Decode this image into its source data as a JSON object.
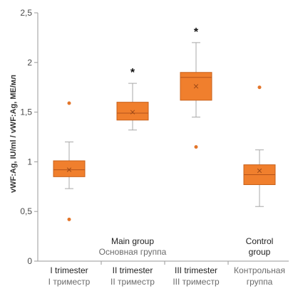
{
  "chart_data": {
    "type": "box",
    "ylabel": "vWF:Ag, IU/ml / vWF:Ag, МЕ/мл",
    "ylim": [
      0,
      2.5
    ],
    "yticks": [
      {
        "value": 0,
        "label": "0"
      },
      {
        "value": 0.5,
        "label": "0,5"
      },
      {
        "value": 1,
        "label": "1"
      },
      {
        "value": 1.5,
        "label": "1,5"
      },
      {
        "value": 2,
        "label": "2"
      },
      {
        "value": 2.5,
        "label": "2,5"
      }
    ],
    "categories": [
      {
        "en": "I trimester",
        "ru": "I триместр"
      },
      {
        "en": "II trimester",
        "ru": "II триместр"
      },
      {
        "en": "III trimester",
        "ru": "III триместр"
      },
      {
        "en": "",
        "ru": "Контрольная группа"
      }
    ],
    "group_labels": [
      {
        "en": "Main group",
        "ru": "Основная группа"
      },
      {
        "en": "Control group",
        "ru": ""
      }
    ],
    "boxes": [
      {
        "category": "I trimester",
        "whisker_low": 0.73,
        "q1": 0.85,
        "median": 0.92,
        "mean": 0.92,
        "q3": 1.01,
        "whisker_high": 1.2,
        "outliers": [
          0.42,
          1.59
        ],
        "significance": ""
      },
      {
        "category": "II trimester",
        "whisker_low": 1.32,
        "q1": 1.42,
        "median": 1.49,
        "mean": 1.5,
        "q3": 1.6,
        "whisker_high": 1.79,
        "outliers": [],
        "significance": "*"
      },
      {
        "category": "III trimester",
        "whisker_low": 1.45,
        "q1": 1.62,
        "median": 1.85,
        "mean": 1.76,
        "q3": 1.9,
        "whisker_high": 2.2,
        "outliers": [
          1.15
        ],
        "significance": "*"
      },
      {
        "category": "Контрольная группа",
        "whisker_low": 0.55,
        "q1": 0.77,
        "median": 0.87,
        "mean": 0.91,
        "q3": 0.97,
        "whisker_high": 1.12,
        "outliers": [
          1.75
        ],
        "significance": ""
      }
    ],
    "colors": {
      "box_fill": "#F07F2D",
      "box_stroke": "#C8611A",
      "whisker": "#A8A8A8",
      "median": "#B5531A",
      "mean_marker": "#9E4A18",
      "outlier": "#E3752A",
      "axis": "#9A9A9A",
      "tick_text": "#4A4A4A",
      "label_en": "#222222",
      "label_ru": "#6B6B6B"
    },
    "grid": false,
    "legend": "none"
  }
}
